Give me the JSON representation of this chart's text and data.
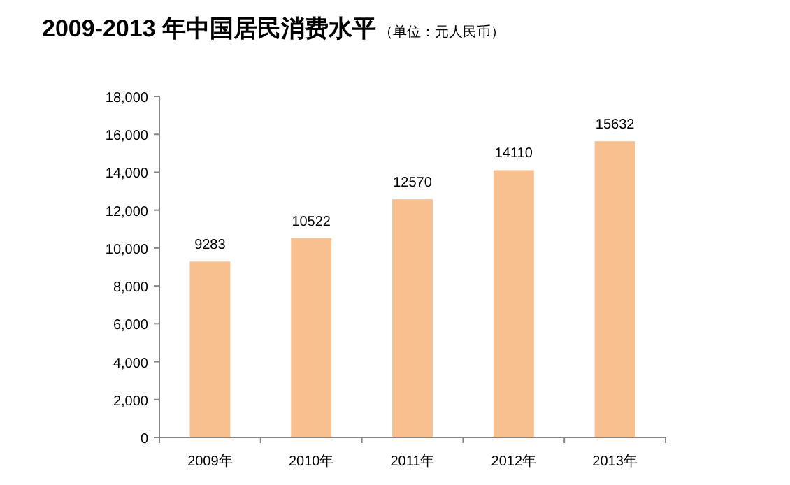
{
  "chart_data": {
    "type": "bar",
    "title": "2009-2013 年中国居民消费水平",
    "subtitle": "（单位：元人民币）",
    "categories": [
      "2009年",
      "2010年",
      "2011年",
      "2012年",
      "2013年"
    ],
    "values": [
      9283,
      10522,
      12570,
      14110,
      15632
    ],
    "color": "#f9c08f",
    "ylim": [
      0,
      18000
    ],
    "yticks": [
      0,
      {
        "value": 2000,
        "label": "2,000"
      },
      {
        "value": 4000,
        "label": "4,000"
      },
      {
        "value": 6000,
        "label": "6,000"
      },
      {
        "value": 8000,
        "label": "8,000"
      },
      {
        "value": 10000,
        "label": "10,000"
      },
      {
        "value": 12000,
        "label": "12,000"
      },
      {
        "value": 14000,
        "label": "14,000"
      },
      {
        "value": 16000,
        "label": "16,000"
      },
      {
        "value": 18000,
        "label": "18,000"
      }
    ],
    "data_labels": true
  }
}
